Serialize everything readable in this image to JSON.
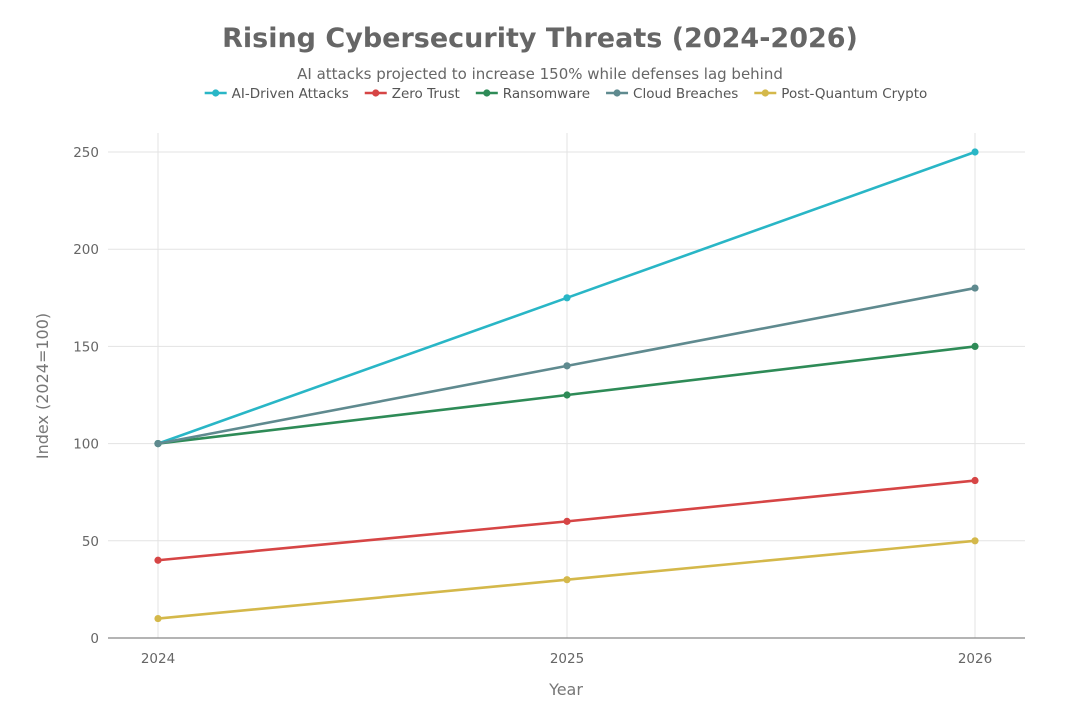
{
  "chart_data": {
    "type": "line",
    "title": "Rising Cybersecurity Threats (2024-2026)",
    "subtitle": "AI attacks projected to increase 150% while defenses lag behind",
    "xlabel": "Year",
    "ylabel": "Index (2024=100)",
    "x": [
      "2024",
      "2025",
      "2026"
    ],
    "ylim": [
      0,
      260
    ],
    "yticks": [
      0,
      50,
      100,
      150,
      200,
      250
    ],
    "grid": true,
    "legend_position": "top",
    "series": [
      {
        "name": "AI-Driven Attacks",
        "color": "#29b6c6",
        "values": [
          100,
          175,
          250
        ]
      },
      {
        "name": "Zero Trust",
        "color": "#d64545",
        "values": [
          40,
          60,
          81
        ]
      },
      {
        "name": "Ransomware",
        "color": "#2e8b57",
        "values": [
          100,
          125,
          150
        ]
      },
      {
        "name": "Cloud Breaches",
        "color": "#5f8a8f",
        "values": [
          100,
          140,
          180
        ]
      },
      {
        "name": "Post-Quantum Crypto",
        "color": "#d4b84a",
        "values": [
          10,
          30,
          50
        ]
      }
    ]
  }
}
